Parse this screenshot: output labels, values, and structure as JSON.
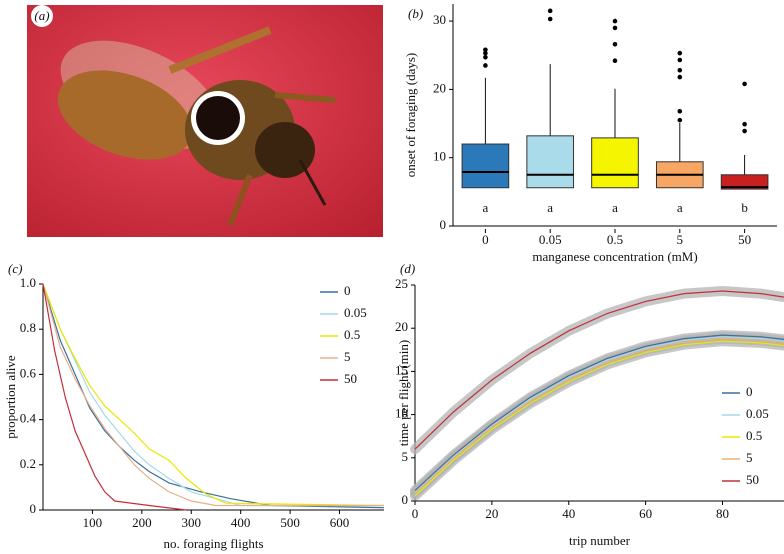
{
  "photo": {
    "label": "(a)"
  },
  "chart_data": [
    {
      "type": "box",
      "panel_label": "(b)",
      "ylabel": "onset of foraging (days)",
      "xlabel": "manganese concentration (mM)",
      "categories": [
        "0",
        "0.05",
        "0.5",
        "5",
        "50"
      ],
      "colors": [
        "#2b79b8",
        "#a9dbeb",
        "#f6f500",
        "#f7a763",
        "#c81f1f"
      ],
      "boxes": [
        {
          "min": 5.6,
          "q1": 5.6,
          "median": 7.9,
          "q3": 12.0,
          "max": 21.7,
          "outliers": [
            25.8,
            25.3,
            24.7,
            23.5
          ]
        },
        {
          "min": 5.6,
          "q1": 5.6,
          "median": 7.5,
          "q3": 13.2,
          "max": 23.7,
          "outliers": [
            31.5,
            30.3
          ]
        },
        {
          "min": 5.6,
          "q1": 5.6,
          "median": 7.5,
          "q3": 12.9,
          "max": 20.1,
          "outliers": [
            30.0,
            29.0,
            26.6,
            24.2
          ]
        },
        {
          "min": 5.6,
          "q1": 5.6,
          "median": 7.5,
          "q3": 9.4,
          "max": 15.1,
          "outliers": [
            25.3,
            24.3,
            22.8,
            21.8,
            16.8,
            15.5
          ]
        },
        {
          "min": 5.4,
          "q1": 5.4,
          "median": 5.7,
          "q3": 7.5,
          "max": 10.4,
          "outliers": [
            20.8,
            14.9,
            13.9
          ]
        }
      ],
      "group_labels": [
        "a",
        "a",
        "a",
        "a",
        "b"
      ],
      "ylim": [
        0,
        32.5
      ],
      "yticks": [
        0,
        10,
        20,
        30
      ]
    },
    {
      "type": "line",
      "panel_label": "(c)",
      "ylabel": "proportion alive",
      "xlabel": "no. foraging flights",
      "xlim": [
        0,
        690
      ],
      "xticks": [
        100,
        200,
        300,
        400,
        500,
        600
      ],
      "ylim": [
        0,
        1
      ],
      "yticks": [
        0,
        {
          "value": 0.2,
          "label": "0.2"
        },
        {
          "value": 0.4,
          "label": "0.4"
        },
        {
          "value": 0.6,
          "label": "0.6"
        },
        {
          "value": 0.8,
          "label": "0.8"
        },
        {
          "value": 1,
          "label": "1.0"
        }
      ],
      "legend": "right",
      "series": [
        {
          "name": "0",
          "color": "#3a6f9f",
          "x": [
            0,
            35,
            65,
            95,
            125,
            155,
            185,
            215,
            255,
            320,
            380,
            460,
            690
          ],
          "values": [
            1,
            0.75,
            0.6,
            0.45,
            0.35,
            0.28,
            0.22,
            0.17,
            0.12,
            0.08,
            0.05,
            0.02,
            0.01
          ]
        },
        {
          "name": "0.05",
          "color": "#a6d9ea",
          "x": [
            0,
            35,
            65,
            95,
            125,
            155,
            185,
            215,
            255,
            300,
            350,
            400,
            690
          ],
          "values": [
            1,
            0.8,
            0.66,
            0.52,
            0.42,
            0.34,
            0.26,
            0.2,
            0.14,
            0.08,
            0.05,
            0.02,
            0.02
          ]
        },
        {
          "name": "0.5",
          "color": "#e9e900",
          "x": [
            0,
            35,
            65,
            95,
            125,
            155,
            185,
            215,
            255,
            290,
            330,
            370,
            690
          ],
          "values": [
            1,
            0.8,
            0.67,
            0.55,
            0.46,
            0.4,
            0.34,
            0.27,
            0.22,
            0.14,
            0.07,
            0.03,
            0.02
          ]
        },
        {
          "name": "5",
          "color": "#e8b08a",
          "x": [
            0,
            35,
            65,
            95,
            125,
            155,
            185,
            215,
            255,
            300,
            350,
            690
          ],
          "values": [
            1,
            0.72,
            0.58,
            0.46,
            0.36,
            0.28,
            0.2,
            0.14,
            0.08,
            0.04,
            0.02,
            0.02
          ]
        },
        {
          "name": "50",
          "color": "#c0303a",
          "x": [
            0,
            24,
            45,
            65,
            85,
            105,
            125,
            145,
            215,
            290
          ],
          "values": [
            1,
            0.7,
            0.5,
            0.35,
            0.25,
            0.15,
            0.08,
            0.04,
            0.02,
            0
          ]
        }
      ]
    },
    {
      "type": "line",
      "panel_label": "(d)",
      "ylabel": "time per flight (min)",
      "xlabel": "trip number",
      "xlim": [
        0,
        96
      ],
      "xticks": [
        0,
        20,
        40,
        60,
        80
      ],
      "ylim": [
        0,
        25
      ],
      "yticks": [
        0,
        5,
        10,
        15,
        20,
        25
      ],
      "legend": "lower right",
      "confidence_band": true,
      "x": [
        0,
        10,
        20,
        30,
        40,
        50,
        60,
        70,
        80,
        90,
        96
      ],
      "series": [
        {
          "name": "0",
          "color": "#3a6f9f",
          "values": [
            1.2,
            5.3,
            8.9,
            12.0,
            14.5,
            16.5,
            17.9,
            18.8,
            19.2,
            19.0,
            18.7
          ]
        },
        {
          "name": "0.05",
          "color": "#a6d9ea",
          "values": [
            1.0,
            5.1,
            8.7,
            11.8,
            14.3,
            16.3,
            17.7,
            18.6,
            19.0,
            18.8,
            18.5
          ]
        },
        {
          "name": "0.5",
          "color": "#e9e900",
          "values": [
            0.6,
            4.7,
            8.3,
            11.3,
            13.8,
            15.8,
            17.2,
            18.1,
            18.5,
            18.3,
            18.0
          ]
        },
        {
          "name": "5",
          "color": "#f0b070",
          "values": [
            0.9,
            5.0,
            8.6,
            11.6,
            14.1,
            16.1,
            17.5,
            18.4,
            18.8,
            18.6,
            18.3
          ]
        },
        {
          "name": "50",
          "color": "#c0303a",
          "values": [
            6.0,
            10.3,
            14.0,
            17.1,
            19.7,
            21.7,
            23.1,
            24.0,
            24.3,
            24.0,
            23.6
          ]
        }
      ]
    }
  ]
}
